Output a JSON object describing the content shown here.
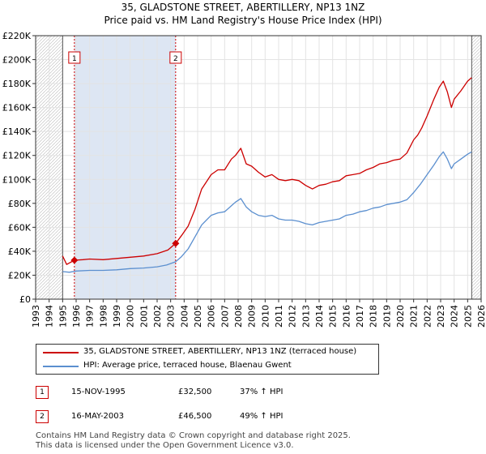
{
  "title_line1": "35, GLADSTONE STREET, ABERTILLERY, NP13 1NZ",
  "title_line2": "Price paid vs. HM Land Registry's House Price Index (HPI)",
  "legend": {
    "property_label": "35, GLADSTONE STREET, ABERTILLERY, NP13 1NZ (terraced house)",
    "hpi_label": "HPI: Average price, terraced house, Blaenau Gwent"
  },
  "transactions": [
    {
      "num": "1",
      "date": "15-NOV-1995",
      "price": "£32,500",
      "hpi": "37% ↑ HPI"
    },
    {
      "num": "2",
      "date": "16-MAY-2003",
      "price": "£46,500",
      "hpi": "49% ↑ HPI"
    }
  ],
  "footer_line1": "Contains HM Land Registry data © Crown copyright and database right 2025.",
  "footer_line2": "This data is licensed under the Open Government Licence v3.0.",
  "colors": {
    "property": "#cc0000",
    "hpi": "#5b8fcf",
    "shade": "#dde6f3",
    "grid": "#e3e3e3"
  },
  "chart_data": {
    "type": "line",
    "title": "Price paid vs. HM Land Registry's House Price Index (HPI)",
    "xlabel": "",
    "ylabel": "",
    "xlim": [
      1993,
      2026
    ],
    "ylim": [
      0,
      220000
    ],
    "y_ticks": [
      0,
      20000,
      40000,
      60000,
      80000,
      100000,
      120000,
      140000,
      160000,
      180000,
      200000,
      220000
    ],
    "y_tick_labels": [
      "£0",
      "£20K",
      "£40K",
      "£60K",
      "£80K",
      "£100K",
      "£120K",
      "£140K",
      "£160K",
      "£180K",
      "£200K",
      "£220K"
    ],
    "x_ticks": [
      1993,
      1994,
      1995,
      1996,
      1997,
      1998,
      1999,
      2000,
      2001,
      2002,
      2003,
      2004,
      2005,
      2006,
      2007,
      2008,
      2009,
      2010,
      2011,
      2012,
      2013,
      2014,
      2015,
      2016,
      2017,
      2018,
      2019,
      2020,
      2021,
      2022,
      2023,
      2024,
      2025,
      2026
    ],
    "x_tick_labels": [
      "1993",
      "1994",
      "1995",
      "1996",
      "1997",
      "1998",
      "1999",
      "2000",
      "2001",
      "2002",
      "2003",
      "2004",
      "2005",
      "2006",
      "2007",
      "2008",
      "2009",
      "2010",
      "2011",
      "2012",
      "2013",
      "2014",
      "2015",
      "2016",
      "2017",
      "2018",
      "2019",
      "2020",
      "2021",
      "2022",
      "2023",
      "2024",
      "2025",
      "2026"
    ],
    "data_start": 1995.0,
    "data_end": 2025.3,
    "series": [
      {
        "name": "35, GLADSTONE STREET, ABERTILLERY, NP13 1NZ (terraced house)",
        "x": [
          1995.0,
          1995.3,
          1995.87,
          1996.5,
          1997,
          1998,
          1999,
          2000,
          2001,
          2002,
          2002.8,
          2003.37,
          2003.8,
          2004.3,
          2004.8,
          2005.3,
          2006,
          2006.5,
          2007,
          2007.5,
          2007.8,
          2008.2,
          2008.6,
          2009,
          2009.5,
          2010,
          2010.5,
          2011,
          2011.5,
          2012,
          2012.5,
          2013,
          2013.5,
          2014,
          2014.5,
          2015,
          2015.5,
          2016,
          2016.5,
          2017,
          2017.5,
          2018,
          2018.5,
          2019,
          2019.5,
          2020,
          2020.5,
          2021,
          2021.3,
          2021.6,
          2022,
          2022.5,
          2022.9,
          2023.2,
          2023.5,
          2023.8,
          2024,
          2024.5,
          2025,
          2025.3
        ],
        "values": [
          36000,
          29000,
          32500,
          33000,
          33500,
          33000,
          34000,
          35000,
          36000,
          38000,
          41000,
          46500,
          53000,
          61000,
          75000,
          92000,
          104000,
          108000,
          108000,
          117000,
          120000,
          126000,
          113000,
          111000,
          106000,
          102000,
          104000,
          100000,
          99000,
          100000,
          99000,
          95000,
          92000,
          95000,
          96000,
          98000,
          99000,
          103000,
          104000,
          105000,
          108000,
          110000,
          113000,
          114000,
          116000,
          117000,
          122000,
          133000,
          137000,
          143000,
          153000,
          167000,
          177000,
          182000,
          173000,
          160000,
          167000,
          174000,
          182000,
          185000
        ]
      },
      {
        "name": "HPI: Average price, terraced house, Blaenau Gwent",
        "x": [
          1995.0,
          1995.5,
          1996,
          1997,
          1998,
          1999,
          2000,
          2001,
          2002,
          2002.7,
          2003.37,
          2003.8,
          2004.3,
          2004.8,
          2005.3,
          2006,
          2006.5,
          2007,
          2007.5,
          2007.8,
          2008.2,
          2008.6,
          2009,
          2009.5,
          2010,
          2010.5,
          2011,
          2011.5,
          2012,
          2012.5,
          2013,
          2013.5,
          2014,
          2014.5,
          2015,
          2015.5,
          2016,
          2016.5,
          2017,
          2017.5,
          2018,
          2018.5,
          2019,
          2019.5,
          2020,
          2020.5,
          2021,
          2021.5,
          2022,
          2022.5,
          2022.9,
          2023.2,
          2023.5,
          2023.8,
          2024,
          2024.5,
          2025,
          2025.3
        ],
        "values": [
          23000,
          22500,
          23500,
          24000,
          24000,
          24500,
          25500,
          26000,
          27000,
          28500,
          31200,
          35500,
          42000,
          52000,
          62000,
          70000,
          72000,
          73000,
          78000,
          81000,
          84000,
          77000,
          73000,
          70000,
          69000,
          70000,
          67000,
          66000,
          66000,
          65000,
          63000,
          62000,
          64000,
          65000,
          66000,
          67000,
          70000,
          71000,
          73000,
          74000,
          76000,
          77000,
          79000,
          80000,
          81000,
          83000,
          89000,
          96000,
          104000,
          112000,
          119000,
          123000,
          117000,
          109000,
          113000,
          117000,
          121000,
          123000
        ]
      }
    ],
    "markers": [
      {
        "label": "1",
        "x": 1995.87,
        "y": 32500
      },
      {
        "label": "2",
        "x": 2003.37,
        "y": 46500
      }
    ],
    "vlines": [
      1995.87,
      2003.37
    ]
  }
}
